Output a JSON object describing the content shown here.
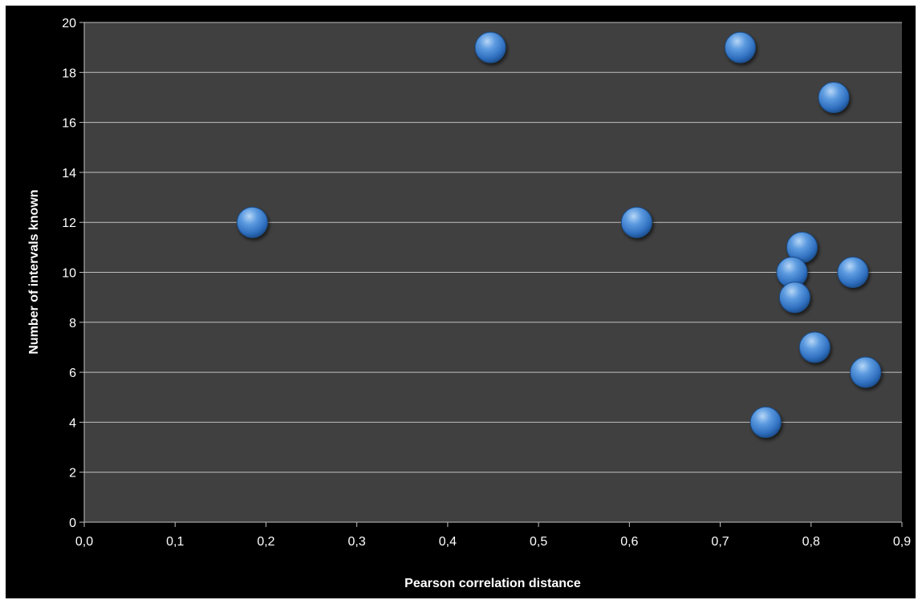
{
  "chart_data": {
    "type": "scatter",
    "title": "",
    "xlabel": "Pearson correlation distance",
    "ylabel": "Number of intervals known",
    "xlim": [
      0,
      0.9
    ],
    "ylim": [
      0,
      20
    ],
    "x_ticks": [
      "0,0",
      "0,1",
      "0,2",
      "0,3",
      "0,4",
      "0,5",
      "0,6",
      "0,7",
      "0,8",
      "0,9"
    ],
    "y_ticks": [
      "0",
      "2",
      "4",
      "6",
      "8",
      "10",
      "12",
      "14",
      "16",
      "18",
      "20"
    ],
    "grid": true,
    "legend": "none",
    "colors": {
      "background": "#000000",
      "plot_area": "#404040",
      "gridline": "#bfbfbf",
      "marker": "#3a7fd0",
      "marker_highlight": "#a9cdf3",
      "marker_edge": "#1c4f8c"
    },
    "series": [
      {
        "points": [
          {
            "x": 0.185,
            "y": 12
          },
          {
            "x": 0.447,
            "y": 19
          },
          {
            "x": 0.608,
            "y": 12
          },
          {
            "x": 0.722,
            "y": 19
          },
          {
            "x": 0.825,
            "y": 17
          },
          {
            "x": 0.79,
            "y": 11
          },
          {
            "x": 0.779,
            "y": 10
          },
          {
            "x": 0.846,
            "y": 10
          },
          {
            "x": 0.782,
            "y": 9
          },
          {
            "x": 0.804,
            "y": 7
          },
          {
            "x": 0.86,
            "y": 6
          },
          {
            "x": 0.75,
            "y": 4
          }
        ]
      }
    ]
  }
}
